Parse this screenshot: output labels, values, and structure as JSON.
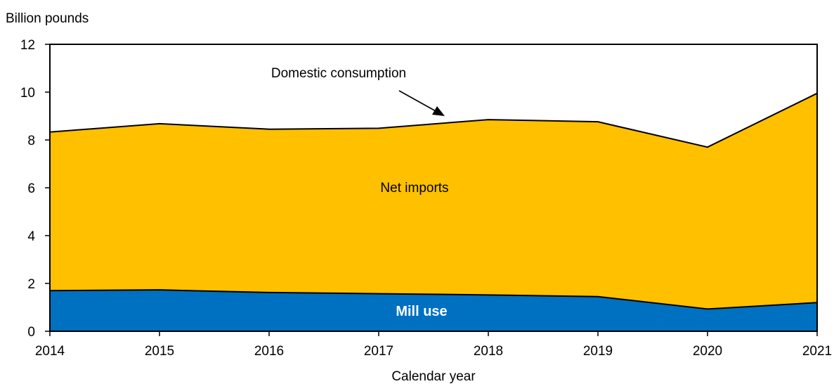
{
  "chart_data": {
    "type": "area",
    "title": "",
    "ylabel": "Billion pounds",
    "xlabel": "Calendar year",
    "x": [
      2014,
      2015,
      2016,
      2017,
      2018,
      2019,
      2020,
      2021
    ],
    "ylim": [
      0,
      12
    ],
    "y_ticks": [
      0,
      2,
      4,
      6,
      8,
      10,
      12
    ],
    "x_tick_labels": [
      "2014",
      "2015",
      "2016",
      "2017",
      "2018",
      "2019",
      "2020",
      "2021"
    ],
    "y_tick_labels": [
      "0",
      "2",
      "4",
      "6",
      "8",
      "10",
      "12"
    ],
    "stacked": true,
    "grid": false,
    "series": [
      {
        "name": "Mill use",
        "values": [
          1.7,
          1.73,
          1.62,
          1.57,
          1.52,
          1.45,
          0.93,
          1.2
        ],
        "color": "#0070C0"
      },
      {
        "name": "Net imports",
        "values": [
          6.63,
          6.95,
          6.83,
          6.92,
          7.33,
          7.31,
          6.77,
          8.75
        ],
        "color": "#FFC000"
      }
    ],
    "total": {
      "name": "Domestic consumption",
      "values": [
        8.33,
        8.68,
        8.45,
        8.49,
        8.85,
        8.76,
        7.7,
        9.95
      ]
    },
    "annotations": {
      "domestic_consumption": "Domestic consumption",
      "net_imports": "Net imports",
      "mill_use": "Mill use"
    }
  }
}
